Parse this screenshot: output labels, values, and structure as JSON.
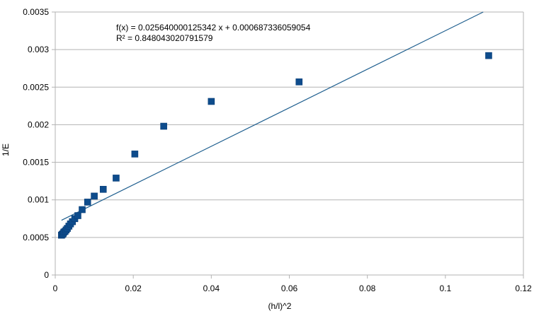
{
  "chart_data": {
    "type": "scatter",
    "xlabel": "(h/l)^2",
    "ylabel": "1/E",
    "xlim": [
      0,
      0.12
    ],
    "ylim": [
      0,
      0.0035
    ],
    "x_ticks": [
      "0",
      "0.02",
      "0.04",
      "0.06",
      "0.08",
      "0.1",
      "0.12"
    ],
    "y_ticks": [
      "0",
      "0.0005",
      "0.001",
      "0.0015",
      "0.002",
      "0.0025",
      "0.003",
      "0.0035"
    ],
    "grid": true,
    "legend": "none",
    "marker_color": "#0e4c8c",
    "trendline_color": "#1f5f8f",
    "series": [
      {
        "points": [
          [
            0.0016,
            0.00053
          ],
          [
            0.0018,
            0.00054
          ],
          [
            0.002,
            0.00055
          ],
          [
            0.0022,
            0.00057
          ],
          [
            0.0025,
            0.00058
          ],
          [
            0.0028,
            0.0006
          ],
          [
            0.0031,
            0.00062
          ],
          [
            0.0035,
            0.00065
          ],
          [
            0.0039,
            0.00068
          ],
          [
            0.0044,
            0.00071
          ],
          [
            0.005,
            0.00075
          ],
          [
            0.0058,
            0.00079
          ],
          [
            0.0069,
            0.00087
          ],
          [
            0.0083,
            0.00097
          ],
          [
            0.01,
            0.00105
          ],
          [
            0.0123,
            0.00114
          ],
          [
            0.0156,
            0.00129
          ],
          [
            0.0204,
            0.00161
          ],
          [
            0.0278,
            0.00198
          ],
          [
            0.04,
            0.00231
          ],
          [
            0.0625,
            0.00257
          ],
          [
            0.1111,
            0.00292
          ]
        ]
      }
    ],
    "trendline": {
      "slope": 0.025640000125342,
      "intercept": 0.000687336059054,
      "x_start": 0.0016
    },
    "annotations": {
      "equation": "f(x) = 0.025640000125342 x + 0.000687336059054",
      "r_squared": "R² = 0.848043020791579"
    }
  }
}
